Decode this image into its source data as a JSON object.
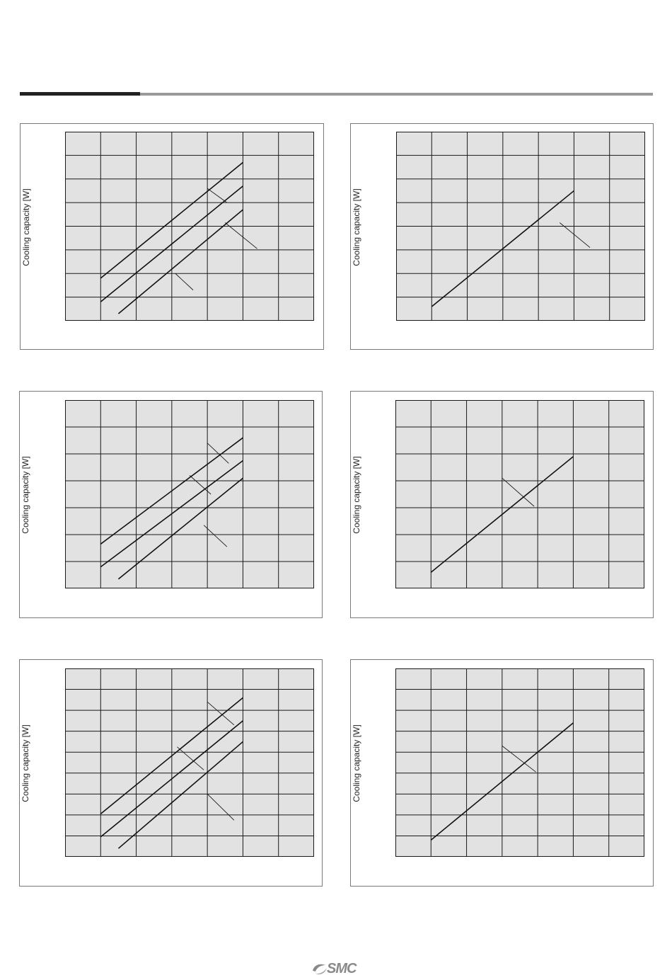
{
  "page": {
    "brand": "SMC"
  },
  "chart_data": [
    {
      "type": "line",
      "ylabel": "Cooling capacity [W]",
      "columns": 7,
      "rows": 8,
      "series": [
        {
          "x": [
            1,
            5
          ],
          "y": [
            1.8,
            6.7
          ]
        },
        {
          "x": [
            1,
            5
          ],
          "y": [
            0.8,
            5.7
          ]
        },
        {
          "x": [
            1.5,
            5
          ],
          "y": [
            0.3,
            4.7
          ]
        }
      ],
      "leaders": [
        [
          [
            4,
            5.6
          ],
          [
            4.55,
            5.0
          ]
        ],
        [
          [
            4.5,
            4.15
          ],
          [
            5.4,
            3.05
          ]
        ],
        [
          [
            3.1,
            2.0
          ],
          [
            3.6,
            1.3
          ]
        ]
      ]
    },
    {
      "type": "line",
      "ylabel": "Cooling capacity [W]",
      "columns": 7,
      "rows": 8,
      "series": [
        {
          "x": [
            1,
            5
          ],
          "y": [
            0.6,
            5.5
          ]
        }
      ],
      "leaders": [
        [
          [
            4.6,
            4.15
          ],
          [
            5.45,
            3.1
          ]
        ]
      ]
    },
    {
      "type": "line",
      "ylabel": "Cooling capacity [W]",
      "columns": 7,
      "rows": 7,
      "series": [
        {
          "x": [
            1,
            5
          ],
          "y": [
            1.65,
            5.6
          ]
        },
        {
          "x": [
            1,
            5
          ],
          "y": [
            0.8,
            4.75
          ]
        },
        {
          "x": [
            1.5,
            5
          ],
          "y": [
            0.35,
            4.1
          ]
        }
      ],
      "leaders": [
        [
          [
            4,
            5.4
          ],
          [
            4.6,
            4.65
          ]
        ],
        [
          [
            3.5,
            4.2
          ],
          [
            4.1,
            3.5
          ]
        ],
        [
          [
            3.9,
            2.35
          ],
          [
            4.55,
            1.55
          ]
        ]
      ]
    },
    {
      "type": "line",
      "ylabel": "Cooling capacity [W]",
      "columns": 7,
      "rows": 7,
      "series": [
        {
          "x": [
            1,
            5
          ],
          "y": [
            0.6,
            4.9
          ]
        }
      ],
      "leaders": [
        [
          [
            3,
            4.1
          ],
          [
            3.9,
            3.05
          ]
        ]
      ]
    },
    {
      "type": "line",
      "ylabel": "Cooling capacity [W]",
      "columns": 7,
      "rows": 9,
      "series": [
        {
          "x": [
            1,
            5
          ],
          "y": [
            2.05,
            7.6
          ]
        },
        {
          "x": [
            1,
            5
          ],
          "y": [
            0.95,
            6.5
          ]
        },
        {
          "x": [
            1.5,
            5
          ],
          "y": [
            0.4,
            5.5
          ]
        }
      ],
      "leaders": [
        [
          [
            4,
            7.4
          ],
          [
            4.75,
            6.3
          ]
        ],
        [
          [
            3.15,
            5.25
          ],
          [
            3.9,
            4.15
          ]
        ],
        [
          [
            4,
            3.0
          ],
          [
            4.75,
            1.75
          ]
        ]
      ]
    },
    {
      "type": "line",
      "ylabel": "Cooling capacity [W]",
      "columns": 7,
      "rows": 9,
      "series": [
        {
          "x": [
            1,
            5
          ],
          "y": [
            0.8,
            6.4
          ]
        }
      ],
      "leaders": [
        [
          [
            3,
            5.3
          ],
          [
            3.95,
            4.05
          ]
        ]
      ]
    }
  ]
}
